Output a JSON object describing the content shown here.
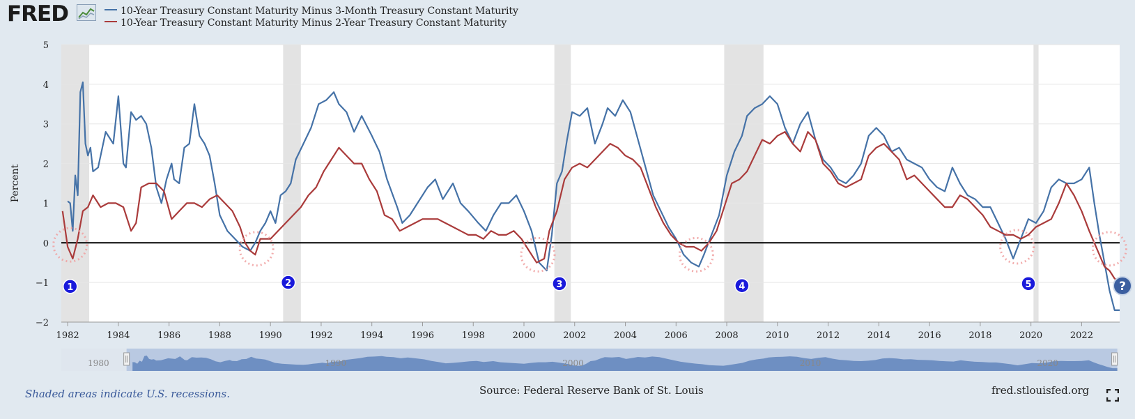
{
  "brand": {
    "logo_text": "FRED",
    "logo_icon": "line-chart-icon"
  },
  "legend": [
    {
      "label": "10-Year Treasury Constant Maturity Minus 3-Month Treasury Constant Maturity",
      "color": "#4572a7"
    },
    {
      "label": "10-Year Treasury Constant Maturity Minus 2-Year Treasury Constant Maturity",
      "color": "#aa3b3b"
    }
  ],
  "footer": {
    "note": "Shaded areas indicate U.S. recessions.",
    "source": "Source: Federal Reserve Bank of St. Louis",
    "url": "fred.stlouisfed.org"
  },
  "icons": {
    "help": "help-icon",
    "fullscreen": "fullscreen-icon"
  },
  "chart_data": {
    "type": "line",
    "ylabel": "Percent",
    "ylim": [
      -2,
      5
    ],
    "yticks": [
      -2,
      -1,
      0,
      1,
      2,
      3,
      4,
      5
    ],
    "xlim": [
      1981.75,
      2023.5
    ],
    "xticks": [
      1982,
      1984,
      1986,
      1988,
      1990,
      1992,
      1994,
      1996,
      1998,
      2000,
      2002,
      2004,
      2006,
      2008,
      2010,
      2012,
      2014,
      2016,
      2018,
      2020,
      2022
    ],
    "grid": true,
    "recessions": [
      [
        1981.75,
        1982.85
      ],
      [
        1990.5,
        1991.2
      ],
      [
        2001.2,
        2001.85
      ],
      [
        2007.9,
        2009.45
      ],
      [
        2020.1,
        2020.3
      ]
    ],
    "markers": [
      {
        "label": "1",
        "x": 1982.1,
        "y": -1.1
      },
      {
        "label": "2",
        "x": 1990.7,
        "y": -1.0
      },
      {
        "label": "3",
        "x": 2001.4,
        "y": -1.03
      },
      {
        "label": "4",
        "x": 2008.6,
        "y": -1.08
      },
      {
        "label": "5",
        "x": 2019.9,
        "y": -1.03
      }
    ],
    "inversion_circles": [
      {
        "x": 1982.1,
        "y": -0.05
      },
      {
        "x": 1989.45,
        "y": -0.15
      },
      {
        "x": 2000.55,
        "y": -0.3
      },
      {
        "x": 2006.8,
        "y": -0.3
      },
      {
        "x": 2019.45,
        "y": -0.1
      },
      {
        "x": 2023.1,
        "y": -0.15
      }
    ],
    "series": [
      {
        "name": "10-Year Treasury Constant Maturity Minus 3-Month Treasury Constant Maturity",
        "color": "#4572a7",
        "x": [
          1982.0,
          1982.1,
          1982.2,
          1982.3,
          1982.4,
          1982.5,
          1982.6,
          1982.7,
          1982.8,
          1982.9,
          1983.0,
          1983.2,
          1983.5,
          1983.8,
          1984.0,
          1984.2,
          1984.3,
          1984.5,
          1984.7,
          1984.9,
          1985.1,
          1985.3,
          1985.5,
          1985.7,
          1985.9,
          1986.1,
          1986.2,
          1986.4,
          1986.6,
          1986.8,
          1987.0,
          1987.2,
          1987.4,
          1987.6,
          1987.8,
          1988.0,
          1988.3,
          1988.6,
          1988.9,
          1989.2,
          1989.4,
          1989.6,
          1989.8,
          1990.0,
          1990.2,
          1990.4,
          1990.6,
          1990.8,
          1991.0,
          1991.3,
          1991.6,
          1991.9,
          1992.2,
          1992.5,
          1992.7,
          1993.0,
          1993.3,
          1993.6,
          1994.0,
          1994.3,
          1994.6,
          1995.0,
          1995.2,
          1995.5,
          1995.8,
          1996.2,
          1996.5,
          1996.8,
          1997.2,
          1997.5,
          1997.8,
          1998.2,
          1998.5,
          1998.8,
          1999.1,
          1999.4,
          1999.7,
          2000.0,
          2000.3,
          2000.6,
          2000.9,
          2001.1,
          2001.3,
          2001.5,
          2001.7,
          2001.9,
          2002.2,
          2002.5,
          2002.8,
          2003.1,
          2003.3,
          2003.6,
          2003.9,
          2004.2,
          2004.5,
          2004.8,
          2005.1,
          2005.4,
          2005.7,
          2006.0,
          2006.3,
          2006.6,
          2006.9,
          2007.1,
          2007.4,
          2007.7,
          2008.0,
          2008.3,
          2008.6,
          2008.8,
          2009.1,
          2009.4,
          2009.7,
          2010.0,
          2010.3,
          2010.6,
          2010.9,
          2011.2,
          2011.5,
          2011.8,
          2012.1,
          2012.4,
          2012.7,
          2013.0,
          2013.3,
          2013.6,
          2013.9,
          2014.2,
          2014.5,
          2014.8,
          2015.1,
          2015.4,
          2015.7,
          2016.0,
          2016.3,
          2016.6,
          2016.9,
          2017.2,
          2017.5,
          2017.8,
          2018.1,
          2018.4,
          2018.7,
          2019.0,
          2019.3,
          2019.6,
          2019.9,
          2020.2,
          2020.5,
          2020.8,
          2021.1,
          2021.4,
          2021.7,
          2022.0,
          2022.3,
          2022.5,
          2022.7,
          2022.9,
          2023.1,
          2023.3,
          2023.5
        ],
        "y": [
          1.05,
          1.0,
          0.3,
          1.7,
          1.2,
          3.8,
          4.05,
          2.5,
          2.2,
          2.4,
          1.8,
          1.9,
          2.8,
          2.5,
          3.7,
          2.0,
          1.9,
          3.3,
          3.1,
          3.2,
          3.0,
          2.4,
          1.4,
          1.0,
          1.6,
          2.0,
          1.6,
          1.5,
          2.4,
          2.5,
          3.5,
          2.7,
          2.5,
          2.2,
          1.5,
          0.7,
          0.3,
          0.1,
          -0.1,
          -0.2,
          0.0,
          0.3,
          0.5,
          0.8,
          0.5,
          1.2,
          1.3,
          1.5,
          2.1,
          2.5,
          2.9,
          3.5,
          3.6,
          3.8,
          3.5,
          3.3,
          2.8,
          3.2,
          2.7,
          2.3,
          1.6,
          0.9,
          0.5,
          0.7,
          1.0,
          1.4,
          1.6,
          1.1,
          1.5,
          1.0,
          0.8,
          0.5,
          0.3,
          0.7,
          1.0,
          1.0,
          1.2,
          0.8,
          0.3,
          -0.5,
          -0.7,
          0.2,
          1.5,
          1.8,
          2.6,
          3.3,
          3.2,
          3.4,
          2.5,
          3.0,
          3.4,
          3.2,
          3.6,
          3.3,
          2.6,
          1.9,
          1.2,
          0.8,
          0.4,
          0.1,
          -0.3,
          -0.5,
          -0.6,
          -0.3,
          0.2,
          0.7,
          1.7,
          2.3,
          2.7,
          3.2,
          3.4,
          3.5,
          3.7,
          3.5,
          2.9,
          2.5,
          3.0,
          3.3,
          2.6,
          2.1,
          1.9,
          1.6,
          1.5,
          1.7,
          2.0,
          2.7,
          2.9,
          2.7,
          2.3,
          2.4,
          2.1,
          2.0,
          1.9,
          1.6,
          1.4,
          1.3,
          1.9,
          1.5,
          1.2,
          1.1,
          0.9,
          0.9,
          0.5,
          0.1,
          -0.4,
          0.1,
          0.6,
          0.5,
          0.8,
          1.4,
          1.6,
          1.5,
          1.5,
          1.6,
          1.9,
          1.0,
          0.2,
          -0.5,
          -1.2,
          -1.7,
          -1.7
        ]
      },
      {
        "name": "10-Year Treasury Constant Maturity Minus 2-Year Treasury Constant Maturity",
        "color": "#aa3b3b",
        "x": [
          1981.8,
          1982.0,
          1982.2,
          1982.4,
          1982.6,
          1982.8,
          1983.0,
          1983.3,
          1983.6,
          1983.9,
          1984.2,
          1984.5,
          1984.7,
          1984.9,
          1985.2,
          1985.5,
          1985.8,
          1986.1,
          1986.4,
          1986.7,
          1987.0,
          1987.3,
          1987.6,
          1987.9,
          1988.2,
          1988.5,
          1988.8,
          1989.0,
          1989.2,
          1989.4,
          1989.6,
          1989.8,
          1990.0,
          1990.3,
          1990.6,
          1990.9,
          1991.2,
          1991.5,
          1991.8,
          1992.1,
          1992.4,
          1992.7,
          1993.0,
          1993.3,
          1993.6,
          1993.9,
          1994.2,
          1994.5,
          1994.8,
          1995.1,
          1995.4,
          1995.7,
          1996.0,
          1996.3,
          1996.6,
          1996.9,
          1997.2,
          1997.5,
          1997.8,
          1998.1,
          1998.4,
          1998.7,
          1999.0,
          1999.3,
          1999.6,
          1999.9,
          2000.2,
          2000.5,
          2000.8,
          2001.0,
          2001.3,
          2001.6,
          2001.9,
          2002.2,
          2002.5,
          2002.8,
          2003.1,
          2003.4,
          2003.7,
          2004.0,
          2004.3,
          2004.6,
          2004.9,
          2005.2,
          2005.5,
          2005.8,
          2006.1,
          2006.4,
          2006.7,
          2007.0,
          2007.3,
          2007.6,
          2007.9,
          2008.2,
          2008.5,
          2008.8,
          2009.1,
          2009.4,
          2009.7,
          2010.0,
          2010.3,
          2010.6,
          2010.9,
          2011.2,
          2011.5,
          2011.8,
          2012.1,
          2012.4,
          2012.7,
          2013.0,
          2013.3,
          2013.6,
          2013.9,
          2014.2,
          2014.5,
          2014.8,
          2015.1,
          2015.4,
          2015.7,
          2016.0,
          2016.3,
          2016.6,
          2016.9,
          2017.2,
          2017.5,
          2017.8,
          2018.1,
          2018.4,
          2018.7,
          2019.0,
          2019.3,
          2019.6,
          2019.9,
          2020.2,
          2020.5,
          2020.8,
          2021.1,
          2021.4,
          2021.7,
          2022.0,
          2022.3,
          2022.5,
          2022.7,
          2022.9,
          2023.1,
          2023.3,
          2023.5
        ],
        "y": [
          0.8,
          -0.1,
          -0.4,
          0.1,
          0.8,
          0.9,
          1.2,
          0.9,
          1.0,
          1.0,
          0.9,
          0.3,
          0.5,
          1.4,
          1.5,
          1.5,
          1.3,
          0.6,
          0.8,
          1.0,
          1.0,
          0.9,
          1.1,
          1.2,
          1.0,
          0.8,
          0.4,
          0.0,
          -0.2,
          -0.3,
          0.1,
          0.1,
          0.1,
          0.3,
          0.5,
          0.7,
          0.9,
          1.2,
          1.4,
          1.8,
          2.1,
          2.4,
          2.2,
          2.0,
          2.0,
          1.6,
          1.3,
          0.7,
          0.6,
          0.3,
          0.4,
          0.5,
          0.6,
          0.6,
          0.6,
          0.5,
          0.4,
          0.3,
          0.2,
          0.2,
          0.1,
          0.3,
          0.2,
          0.2,
          0.3,
          0.1,
          -0.2,
          -0.5,
          -0.4,
          0.3,
          0.8,
          1.6,
          1.9,
          2.0,
          1.9,
          2.1,
          2.3,
          2.5,
          2.4,
          2.2,
          2.1,
          1.9,
          1.4,
          0.9,
          0.5,
          0.2,
          0.0,
          -0.1,
          -0.1,
          -0.2,
          0.0,
          0.3,
          0.9,
          1.5,
          1.6,
          1.8,
          2.2,
          2.6,
          2.5,
          2.7,
          2.8,
          2.5,
          2.3,
          2.8,
          2.6,
          2.0,
          1.8,
          1.5,
          1.4,
          1.5,
          1.6,
          2.2,
          2.4,
          2.5,
          2.3,
          2.1,
          1.6,
          1.7,
          1.5,
          1.3,
          1.1,
          0.9,
          0.9,
          1.2,
          1.1,
          0.9,
          0.7,
          0.4,
          0.3,
          0.2,
          0.2,
          0.1,
          0.2,
          0.4,
          0.5,
          0.6,
          1.0,
          1.5,
          1.2,
          0.8,
          0.3,
          0.0,
          -0.3,
          -0.6,
          -0.7,
          -0.9,
          -1.0
        ]
      }
    ],
    "navigator": {
      "labels": [
        "1980",
        "1990",
        "2000",
        "2010",
        "2020"
      ],
      "ticks": [
        1980,
        1990,
        2000,
        2010,
        2020
      ],
      "xlim": [
        1979,
        2023.6
      ],
      "selected": [
        1981.75,
        2023.5
      ]
    }
  }
}
